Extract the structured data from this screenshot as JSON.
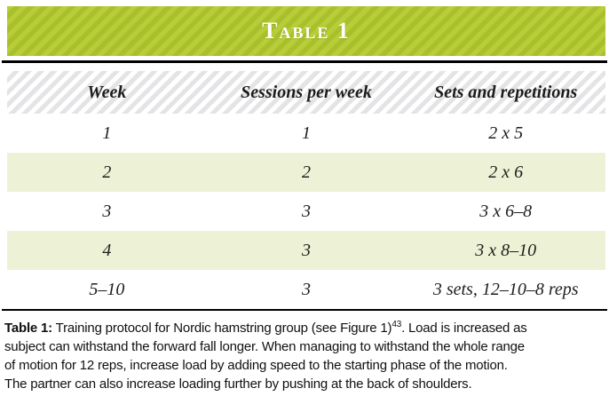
{
  "banner": {
    "title": "Table 1"
  },
  "table": {
    "columns": [
      "Week",
      "Sessions per week",
      "Sets and repetitions"
    ],
    "rows": [
      [
        "1",
        "1",
        "2 x 5"
      ],
      [
        "2",
        "2",
        "2 x 6"
      ],
      [
        "3",
        "3",
        "3 x 6–8"
      ],
      [
        "4",
        "3",
        "3 x 8–10"
      ],
      [
        "5–10",
        "3",
        "3 sets, 12–10–8 reps"
      ]
    ]
  },
  "caption": {
    "label": "Table 1:",
    "line1_pre": " Training protocol for Nordic hamstring group (see Figure 1)",
    "line1_sup": "43",
    "line1_post": ". Load is increased as",
    "line2": "subject can withstand the forward fall longer. When managing to withstand the whole range",
    "line3": "of motion for 12 reps, increase load by adding speed to the starting phase of the motion.",
    "line4": "The partner can also increase loading further by pushing at the back of shoulders."
  },
  "colors": {
    "banner_stripe_light": "#b8ce38",
    "banner_stripe_dark": "#aabf2c",
    "header_stripe_gray": "#e4e4e6",
    "alt_row_green": "#edf2d6",
    "rule_black": "#000000",
    "banner_text": "#ffffff"
  }
}
